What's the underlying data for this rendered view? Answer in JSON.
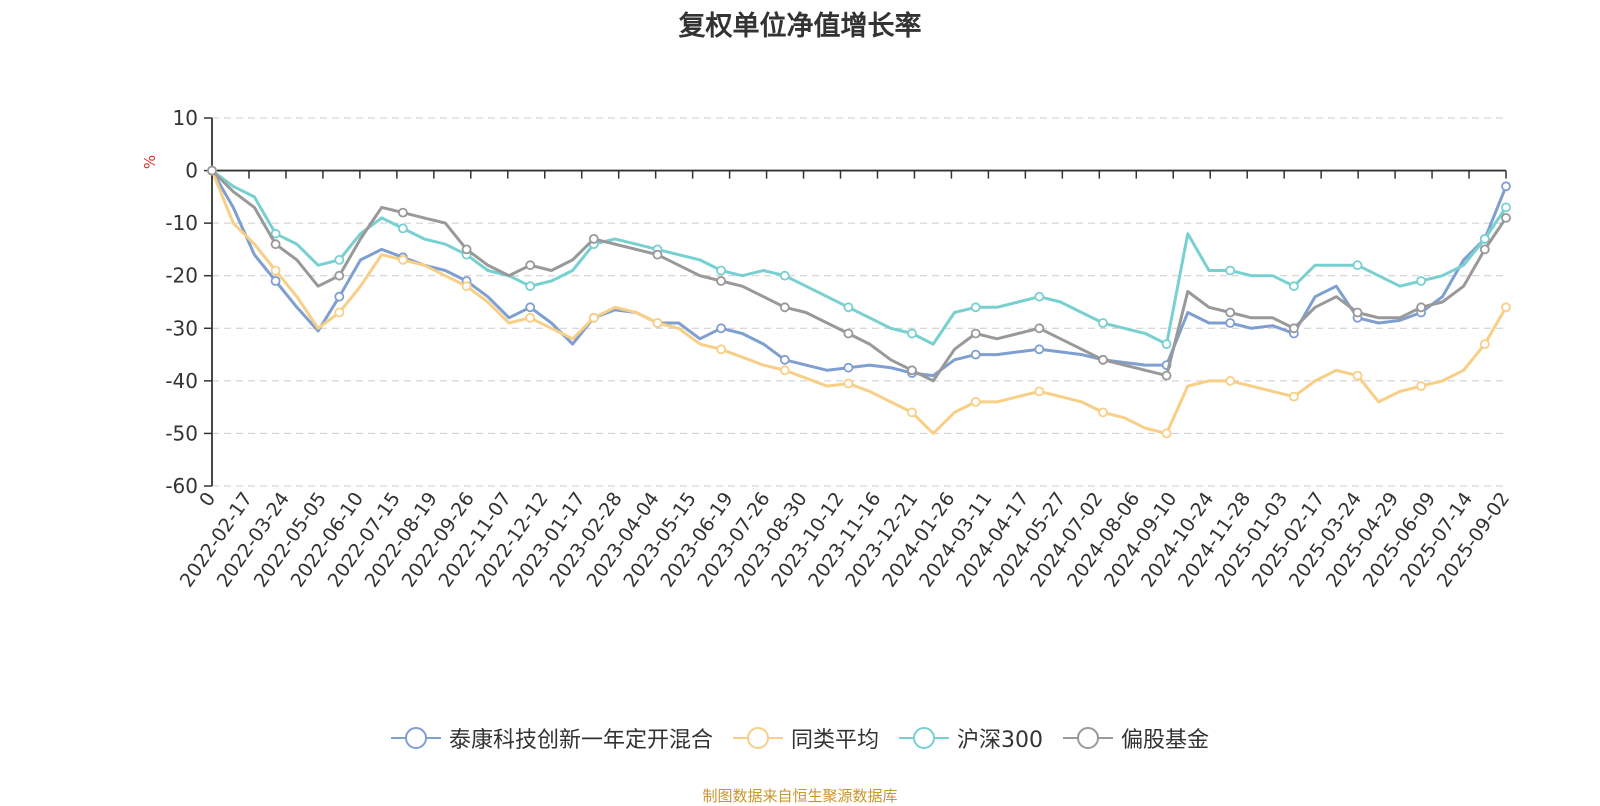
{
  "title": "复权单位净值增长率",
  "source_note": "制图数据来自恒生聚源数据库",
  "colors": {
    "axis": "#333333",
    "grid": "#cccccc",
    "unit": "#e03030",
    "source": "#c8962a"
  },
  "chart_data": {
    "type": "line",
    "ylabel": "%",
    "ylim": [
      -60,
      10
    ],
    "yticks": [
      10,
      0,
      -10,
      -20,
      -30,
      -40,
      -50,
      -60
    ],
    "grid": "dashed-horizontal",
    "legend_position": "bottom",
    "xticks": [
      "0",
      "2022-02-17",
      "2022-03-24",
      "2022-05-05",
      "2022-06-10",
      "2022-07-15",
      "2022-08-19",
      "2022-09-26",
      "2022-11-07",
      "2022-12-12",
      "2023-01-17",
      "2023-02-28",
      "2023-04-04",
      "2023-05-15",
      "2023-06-19",
      "2023-07-26",
      "2023-08-30",
      "2023-10-12",
      "2023-11-16",
      "2023-12-21",
      "2024-01-26",
      "2024-03-11",
      "2024-04-17",
      "2024-05-27",
      "2024-07-02",
      "2024-08-06",
      "2024-09-10",
      "2024-10-24",
      "2024-11-28",
      "2025-01-03",
      "2025-02-17",
      "2025-03-24",
      "2025-04-29",
      "2025-06-09",
      "2025-07-14",
      "2025-09-02"
    ],
    "series": [
      {
        "name": "泰康科技创新一年定开混合",
        "color": "#7f9fd0",
        "values": [
          0,
          -7,
          -16,
          -21,
          -26,
          -30.5,
          -24,
          -17,
          -15,
          -16.5,
          -18,
          -19,
          -21,
          -24,
          -28,
          -26,
          -29,
          -33,
          -28,
          -26.5,
          -27,
          -29,
          -29,
          -32,
          -30,
          -31,
          -33,
          -36,
          -37,
          -38,
          -37.5,
          -37,
          -37.5,
          -38.5,
          -39,
          -36,
          -35,
          -35,
          -34.5,
          -34,
          -34.5,
          -35,
          -36,
          -36.5,
          -37,
          -37,
          -27,
          -29,
          -29,
          -30,
          -29.5,
          -31,
          -24,
          -22,
          -28,
          -29,
          -28.5,
          -27,
          -24,
          -17,
          -13,
          -3
        ]
      },
      {
        "name": "同类平均",
        "color": "#f7cf86",
        "values": [
          0,
          -10,
          -14,
          -19,
          -24,
          -30,
          -27,
          -22,
          -16,
          -17,
          -18,
          -20,
          -22,
          -25,
          -29,
          -28,
          -30,
          -32,
          -28,
          -26,
          -27,
          -29,
          -30,
          -33,
          -34,
          -35.5,
          -37,
          -38,
          -39.5,
          -41,
          -40.5,
          -42,
          -44,
          -46,
          -50,
          -46,
          -44,
          -44,
          -43,
          -42,
          -43,
          -44,
          -46,
          -47,
          -49,
          -50,
          -41,
          -40,
          -40,
          -41,
          -42,
          -43,
          -40,
          -38,
          -39,
          -44,
          -42,
          -41,
          -40,
          -38,
          -33,
          -26
        ]
      },
      {
        "name": "沪深300",
        "color": "#78d0d0",
        "values": [
          0,
          -3,
          -5,
          -12,
          -14,
          -18,
          -17,
          -12,
          -9,
          -11,
          -13,
          -14,
          -16,
          -19,
          -20,
          -22,
          -21,
          -19,
          -14,
          -13,
          -14,
          -15,
          -16,
          -17,
          -19,
          -20,
          -19,
          -20,
          -22,
          -24,
          -26,
          -28,
          -30,
          -31,
          -33,
          -27,
          -26,
          -26,
          -25,
          -24,
          -25,
          -27,
          -29,
          -30,
          -31,
          -33,
          -12,
          -19,
          -19,
          -20,
          -20,
          -22,
          -18,
          -18,
          -18,
          -20,
          -22,
          -21,
          -20,
          -18,
          -13,
          -7
        ]
      },
      {
        "name": "偏股基金",
        "color": "#999999",
        "values": [
          0,
          -4,
          -7,
          -14,
          -17,
          -22,
          -20,
          -13,
          -7,
          -8,
          -9,
          -10,
          -15,
          -18,
          -20,
          -18,
          -19,
          -17,
          -13,
          -14,
          -15,
          -16,
          -18,
          -20,
          -21,
          -22,
          -24,
          -26,
          -27,
          -29,
          -31,
          -33,
          -36,
          -38,
          -40,
          -34,
          -31,
          -32,
          -31,
          -30,
          -32,
          -34,
          -36,
          -37,
          -38,
          -39,
          -23,
          -26,
          -27,
          -28,
          -28,
          -30,
          -26,
          -24,
          -27,
          -28,
          -28,
          -26,
          -25,
          -22,
          -15,
          -9
        ]
      }
    ]
  }
}
